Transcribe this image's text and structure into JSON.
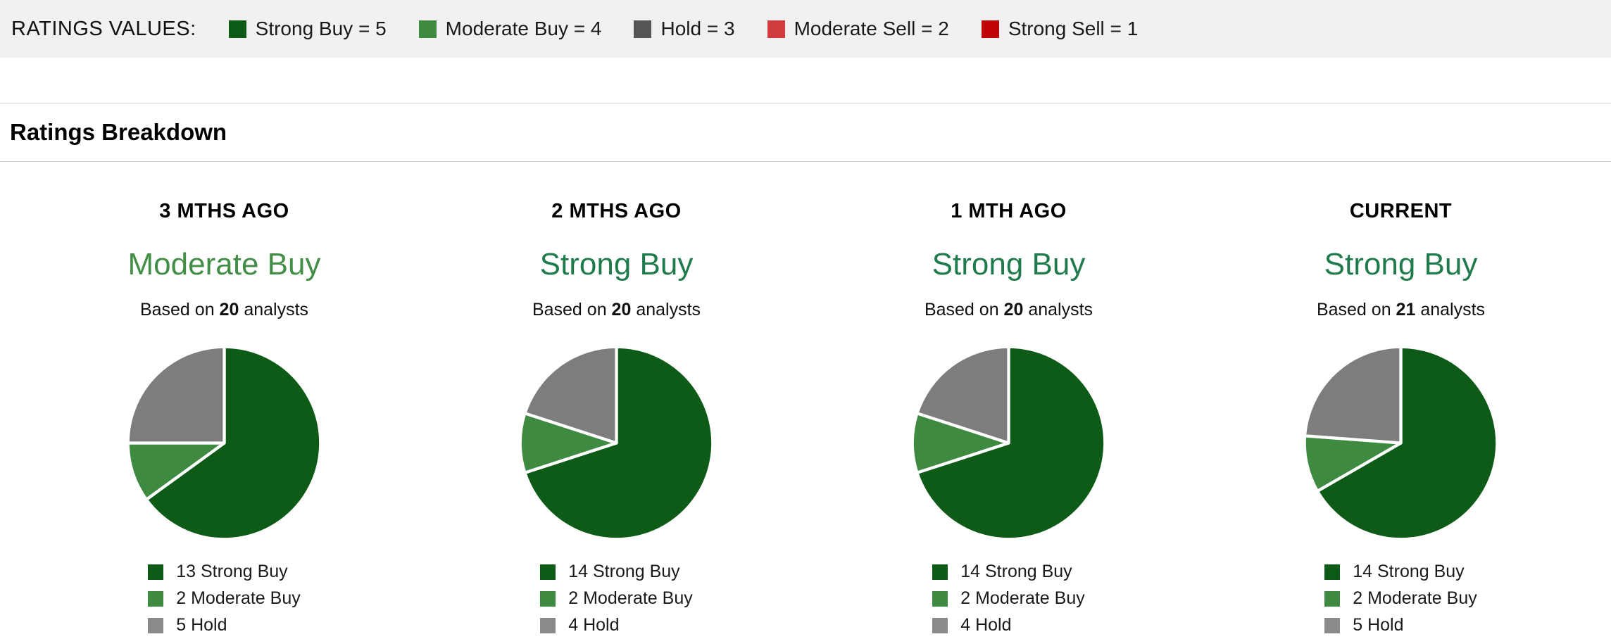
{
  "ratings_bar": {
    "label": "RATINGS VALUES:",
    "items": [
      {
        "name": "strong-buy",
        "label": "Strong Buy = 5",
        "color": "#0d5b17"
      },
      {
        "name": "moderate-buy",
        "label": "Moderate Buy = 4",
        "color": "#3e8a41"
      },
      {
        "name": "hold",
        "label": "Hold = 3",
        "color": "#555555"
      },
      {
        "name": "moderate-sell",
        "label": "Moderate Sell = 2",
        "color": "#d23c3c"
      },
      {
        "name": "strong-sell",
        "label": "Strong Sell = 1",
        "color": "#c00404"
      }
    ]
  },
  "section_title": "Ratings Breakdown",
  "chart_data": [
    {
      "type": "pie",
      "title": "3 MTHS AGO",
      "consensus": "Moderate Buy",
      "consensus_color": "#428e47",
      "based_on": {
        "prefix": "Based on",
        "count": "20",
        "suffix": "analysts"
      },
      "start_angle_deg": 0,
      "direction": "clockwise",
      "legend_position": "bottom",
      "slices": [
        {
          "name": "Strong Buy",
          "label": "13 Strong Buy",
          "value": 13,
          "color": "#0d5b17",
          "legend_color": "#0d5b17"
        },
        {
          "name": "Moderate Buy",
          "label": "2 Moderate Buy",
          "value": 2,
          "color": "#3e8a41",
          "legend_color": "#3e8a41"
        },
        {
          "name": "Hold",
          "label": "5 Hold",
          "value": 5,
          "color": "#7d7d7d",
          "legend_color": "#8a8a8a"
        }
      ]
    },
    {
      "type": "pie",
      "title": "2 MTHS AGO",
      "consensus": "Strong Buy",
      "consensus_color": "#1f7b4b",
      "based_on": {
        "prefix": "Based on",
        "count": "20",
        "suffix": "analysts"
      },
      "start_angle_deg": 0,
      "direction": "clockwise",
      "legend_position": "bottom",
      "slices": [
        {
          "name": "Strong Buy",
          "label": "14 Strong Buy",
          "value": 14,
          "color": "#0d5b17",
          "legend_color": "#0d5b17"
        },
        {
          "name": "Moderate Buy",
          "label": "2 Moderate Buy",
          "value": 2,
          "color": "#3e8a41",
          "legend_color": "#3e8a41"
        },
        {
          "name": "Hold",
          "label": "4 Hold",
          "value": 4,
          "color": "#7d7d7d",
          "legend_color": "#8a8a8a"
        }
      ]
    },
    {
      "type": "pie",
      "title": "1 MTH AGO",
      "consensus": "Strong Buy",
      "consensus_color": "#1f7b4b",
      "based_on": {
        "prefix": "Based on",
        "count": "20",
        "suffix": "analysts"
      },
      "start_angle_deg": 0,
      "direction": "clockwise",
      "legend_position": "bottom",
      "slices": [
        {
          "name": "Strong Buy",
          "label": "14 Strong Buy",
          "value": 14,
          "color": "#0d5b17",
          "legend_color": "#0d5b17"
        },
        {
          "name": "Moderate Buy",
          "label": "2 Moderate Buy",
          "value": 2,
          "color": "#3e8a41",
          "legend_color": "#3e8a41"
        },
        {
          "name": "Hold",
          "label": "4 Hold",
          "value": 4,
          "color": "#7d7d7d",
          "legend_color": "#8a8a8a"
        }
      ]
    },
    {
      "type": "pie",
      "title": "CURRENT",
      "consensus": "Strong Buy",
      "consensus_color": "#1f7b4b",
      "based_on": {
        "prefix": "Based on",
        "count": "21",
        "suffix": "analysts"
      },
      "start_angle_deg": 0,
      "direction": "clockwise",
      "legend_position": "bottom",
      "slices": [
        {
          "name": "Strong Buy",
          "label": "14 Strong Buy",
          "value": 14,
          "color": "#0d5b17",
          "legend_color": "#0d5b17"
        },
        {
          "name": "Moderate Buy",
          "label": "2 Moderate Buy",
          "value": 2,
          "color": "#3e8a41",
          "legend_color": "#3e8a41"
        },
        {
          "name": "Hold",
          "label": "5 Hold",
          "value": 5,
          "color": "#7d7d7d",
          "legend_color": "#8a8a8a"
        }
      ]
    }
  ]
}
